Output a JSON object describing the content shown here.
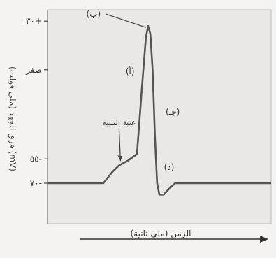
{
  "chart_data": {
    "type": "line",
    "title": "",
    "xlabel": "الزمن (ملي ثانية)",
    "ylabel": "فرق الجهد (ملي فولت) (mV)",
    "yticks": [
      {
        "value": 30,
        "label": "٣٠+"
      },
      {
        "value": 0,
        "label": "صفر"
      },
      {
        "value": -55,
        "label": "٥٥-"
      },
      {
        "value": -70,
        "label": "٧٠-"
      }
    ],
    "ylim": [
      -95,
      37
    ],
    "xlim": [
      0,
      100
    ],
    "grid": false,
    "series": [
      {
        "name": "",
        "x": [
          0,
          25,
          29,
          32,
          36,
          40,
          42,
          44,
          45,
          46,
          47,
          48,
          49,
          50,
          52,
          54,
          57,
          60,
          100
        ],
        "y": [
          -70,
          -70,
          -63,
          -59,
          -56,
          -52,
          -15,
          20,
          27,
          22,
          0,
          -40,
          -70,
          -77,
          -77,
          -74,
          -70,
          -70,
          -70
        ]
      }
    ],
    "annotations": [
      {
        "id": "b",
        "label": "(ب)",
        "x": 44,
        "y": 27
      },
      {
        "id": "a",
        "label": "(أ)",
        "x": 41,
        "y": -1
      },
      {
        "id": "c",
        "label": "(جـ)",
        "x": 51,
        "y": -26
      },
      {
        "id": "d",
        "label": "(د)",
        "x": 50,
        "y": -60
      },
      {
        "id": "threshold",
        "label": "عتبة التنبيه",
        "x": 32,
        "y": -58
      }
    ]
  }
}
